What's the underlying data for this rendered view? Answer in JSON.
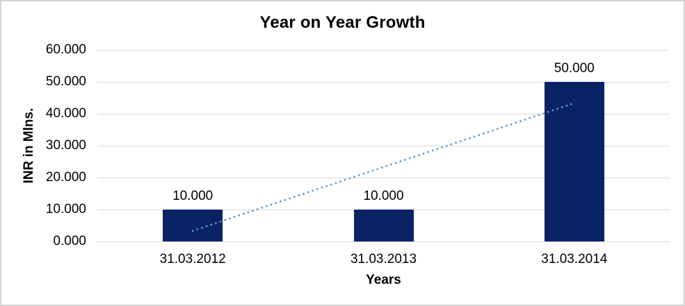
{
  "title": "Year on Year Growth",
  "axes": {
    "y_title": "INR in Mlns.",
    "x_title": "Years"
  },
  "colors": {
    "bar": "#0a2365",
    "trendline": "#5b9bd5",
    "gridline": "#d9d9d9",
    "text": "#000000",
    "frame_border": "#d3d3d3",
    "background": "#ffffff"
  },
  "chart_data": {
    "type": "bar",
    "title": "Year on Year Growth",
    "xlabel": "Years",
    "ylabel": "INR in Mlns.",
    "categories": [
      "31.03.2012",
      "31.03.2013",
      "31.03.2014"
    ],
    "values": [
      10,
      10,
      50
    ],
    "data_labels": [
      "10.000",
      "10.000",
      "50.000"
    ],
    "ylim": [
      0,
      60
    ],
    "y_ticks": [
      {
        "value": 0,
        "label": "0.000"
      },
      {
        "value": 10,
        "label": "10.000"
      },
      {
        "value": 20,
        "label": "20.000"
      },
      {
        "value": 30,
        "label": "30.000"
      },
      {
        "value": 40,
        "label": "40.000"
      },
      {
        "value": 50,
        "label": "50.000"
      },
      {
        "value": 60,
        "label": "60.000"
      }
    ],
    "grid": "horizontal",
    "legend": "none",
    "bar_color": "#0a2365",
    "trendline": {
      "type": "linear",
      "style": "dotted",
      "color": "#5b9bd5",
      "start_value": 3.333,
      "end_value": 43.333
    }
  }
}
